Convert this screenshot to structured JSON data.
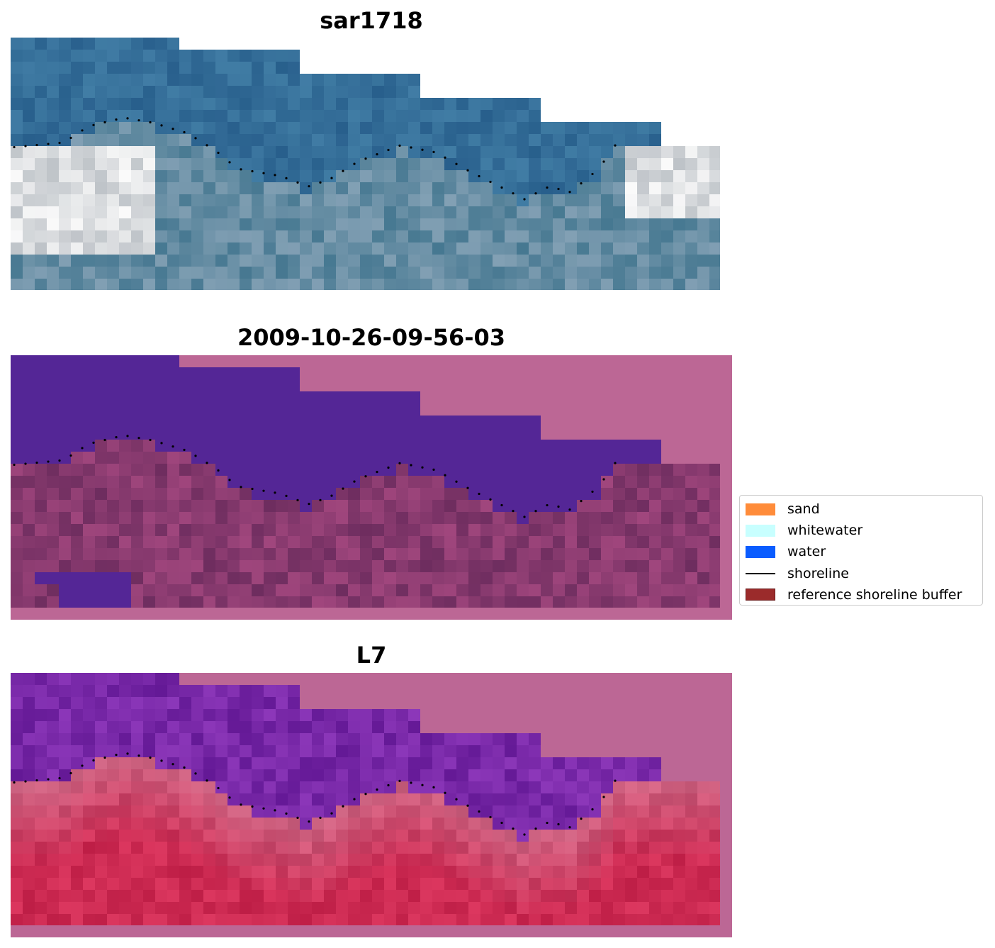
{
  "panels": [
    {
      "title": "sar1718",
      "style": "rgb"
    },
    {
      "title": "2009-10-26-09-56-03",
      "style": "classified"
    },
    {
      "title": "L7",
      "style": "index"
    }
  ],
  "legend": {
    "items": [
      {
        "label": "sand",
        "color": "#ff8c3a",
        "kind": "patch"
      },
      {
        "label": "whitewater",
        "color": "#c8ffff",
        "kind": "patch"
      },
      {
        "label": "water",
        "color": "#0a5cff",
        "kind": "patch"
      },
      {
        "label": "shoreline",
        "color": "#000000",
        "kind": "line"
      },
      {
        "label": "reference shoreline buffer",
        "color": "#9b2b2b",
        "kind": "patch"
      }
    ]
  },
  "colors": {
    "water_class": "#542696",
    "buffer_overlay": "#bc6795",
    "shoreline_dots": "#000000"
  }
}
